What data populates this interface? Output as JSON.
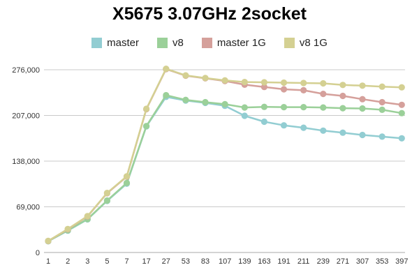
{
  "chart_data": {
    "type": "line",
    "title": "X5675 3.07GHz 2socket",
    "xlabel": "",
    "ylabel": "",
    "categories": [
      "1",
      "2",
      "3",
      "5",
      "7",
      "17",
      "27",
      "53",
      "83",
      "107",
      "139",
      "163",
      "191",
      "211",
      "239",
      "271",
      "307",
      "353",
      "397"
    ],
    "series": [
      {
        "name": "master",
        "color": "#92cdd2",
        "values": [
          17000,
          33000,
          50000,
          78000,
          104000,
          190500,
          235000,
          229500,
          226000,
          221500,
          206500,
          197500,
          192000,
          188500,
          184000,
          181000,
          177500,
          175000,
          172500
        ]
      },
      {
        "name": "v8",
        "color": "#9bd099",
        "values": [
          17200,
          33500,
          50500,
          78500,
          105000,
          191000,
          237500,
          230500,
          227000,
          224000,
          219000,
          220000,
          219500,
          219500,
          219000,
          218000,
          217500,
          215500,
          210500
        ]
      },
      {
        "name": "master 1G",
        "color": "#d5a09b",
        "values": [
          17400,
          35000,
          54500,
          89500,
          114500,
          216500,
          277000,
          267000,
          263000,
          259000,
          253500,
          250000,
          246500,
          245000,
          239500,
          236500,
          231500,
          227000,
          223000
        ]
      },
      {
        "name": "v8 1G",
        "color": "#d4d092",
        "values": [
          17500,
          35500,
          55000,
          90000,
          115000,
          217000,
          277500,
          267500,
          263500,
          260000,
          257500,
          257000,
          256500,
          256000,
          255500,
          253000,
          252000,
          250500,
          249500
        ]
      }
    ],
    "ylim": [
      0,
      276000
    ],
    "yticks": [
      0,
      69000,
      138000,
      207000,
      276000
    ],
    "ytick_labels": [
      "0",
      "69,000",
      "138,000",
      "207,000",
      "276,000"
    ],
    "grid": true,
    "legend_position": "top",
    "grid_color": "#c9c9c9",
    "baseline_color": "#aaaaaa",
    "tick_text_color": "#333333"
  }
}
